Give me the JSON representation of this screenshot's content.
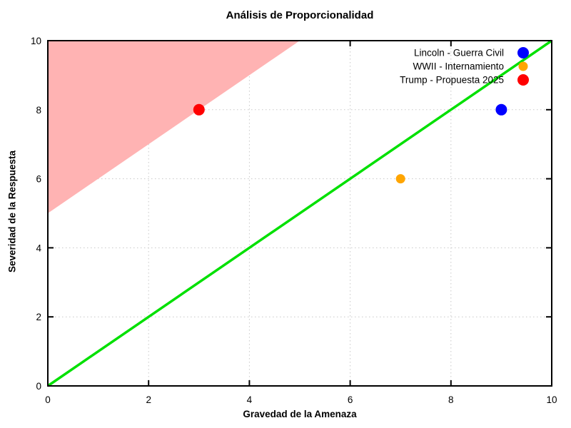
{
  "chart_data": {
    "type": "scatter",
    "title": "Análisis de Proporcionalidad",
    "xlabel": "Gravedad de la Amenaza",
    "ylabel": "Severidad de la Respuesta",
    "xlim": [
      0,
      10
    ],
    "ylim": [
      0,
      10
    ],
    "xticks": [
      "0",
      "2",
      "4",
      "6",
      "8",
      "10"
    ],
    "yticks": [
      "0",
      "2",
      "4",
      "6",
      "8",
      "10"
    ],
    "grid": {
      "on": true,
      "interval": 2,
      "style": "dotted",
      "color": "#c8c8c8"
    },
    "legend_position": "top-right-inside",
    "series": [
      {
        "name": "Lincoln - Guerra Civil",
        "color": "#0000ff",
        "points": [
          [
            9,
            8
          ]
        ],
        "marker": "circle",
        "marker_radius": 8
      },
      {
        "name": "WWII - Internamiento",
        "color": "#ffa500",
        "points": [
          [
            7,
            6
          ]
        ],
        "marker": "circle",
        "marker_radius": 6.5
      },
      {
        "name": "Trump - Propuesta 2025",
        "color": "#ff0000",
        "points": [
          [
            3,
            8
          ]
        ],
        "marker": "circle",
        "marker_radius": 8
      }
    ],
    "reference_line": {
      "name": "proportionality-line",
      "from": [
        0,
        0
      ],
      "to": [
        10,
        10
      ],
      "color": "#00e000",
      "width": 3.5
    },
    "shaded_region": {
      "name": "disproportionate-zone",
      "polygon": [
        [
          0,
          5
        ],
        [
          0,
          10
        ],
        [
          5,
          10
        ]
      ],
      "color": "#ffb3b3"
    },
    "border_color": "#000000"
  }
}
